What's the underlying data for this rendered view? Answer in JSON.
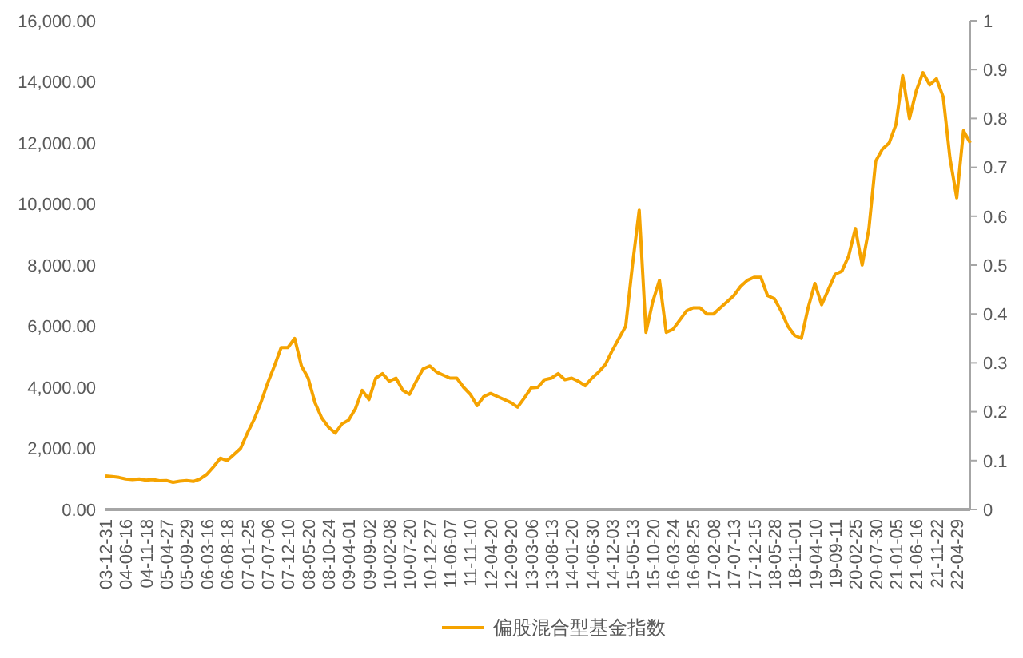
{
  "chart_data": {
    "type": "line",
    "categories": [
      "03-12-31",
      null,
      null,
      "04-06-16",
      null,
      null,
      "04-11-18",
      null,
      null,
      "05-04-27",
      null,
      null,
      "05-09-29",
      null,
      null,
      "06-03-16",
      null,
      null,
      "06-08-18",
      null,
      null,
      "07-01-25",
      null,
      null,
      "07-07-06",
      null,
      null,
      "07-12-10",
      null,
      null,
      "08-05-20",
      null,
      null,
      "08-10-24",
      null,
      null,
      "09-04-01",
      null,
      null,
      "09-09-02",
      null,
      null,
      "10-02-08",
      null,
      null,
      "10-07-20",
      null,
      null,
      "10-12-27",
      null,
      null,
      "11-06-07",
      null,
      null,
      "11-11-10",
      null,
      null,
      "12-04-20",
      null,
      null,
      "12-09-20",
      null,
      null,
      "13-03-06",
      null,
      null,
      "13-08-13",
      null,
      null,
      "14-01-20",
      null,
      null,
      "14-06-30",
      null,
      null,
      "14-12-03",
      null,
      null,
      "15-05-13",
      null,
      null,
      "15-10-20",
      null,
      null,
      "16-03-24",
      null,
      null,
      "16-08-25",
      null,
      null,
      "17-02-08",
      null,
      null,
      "17-07-13",
      null,
      null,
      "17-12-15",
      null,
      null,
      "18-05-28",
      null,
      null,
      "18-11-01",
      null,
      null,
      "19-04-10",
      null,
      null,
      "19-09-11",
      null,
      null,
      "20-02-25",
      null,
      null,
      "20-07-30",
      null,
      null,
      "21-01-05",
      null,
      null,
      "21-06-16",
      null,
      null,
      "21-11-22",
      null,
      null,
      "22-04-29",
      null,
      null
    ],
    "series": [
      {
        "name": "偏股混合型基金指数",
        "color": "#f5a300",
        "values": [
          1100,
          1080,
          1050,
          1000,
          980,
          1000,
          960,
          980,
          940,
          950,
          890,
          930,
          950,
          920,
          1000,
          1150,
          1400,
          1680,
          1600,
          1800,
          2000,
          2500,
          2950,
          3500,
          4140,
          4700,
          5300,
          5300,
          5600,
          4700,
          4300,
          3500,
          3000,
          2700,
          2500,
          2800,
          2930,
          3300,
          3900,
          3600,
          4300,
          4450,
          4200,
          4300,
          3900,
          3770,
          4200,
          4600,
          4700,
          4500,
          4400,
          4300,
          4300,
          4000,
          3770,
          3400,
          3700,
          3800,
          3700,
          3600,
          3500,
          3350,
          3650,
          3980,
          4000,
          4250,
          4300,
          4450,
          4250,
          4300,
          4200,
          4050,
          4300,
          4500,
          4750,
          5200,
          5600,
          6000,
          8000,
          9800,
          5800,
          6800,
          7500,
          5800,
          5900,
          6200,
          6500,
          6600,
          6600,
          6400,
          6400,
          6600,
          6800,
          7000,
          7300,
          7500,
          7600,
          7600,
          7000,
          6900,
          6500,
          6000,
          5700,
          5600,
          6600,
          7400,
          6700,
          7200,
          7700,
          7800,
          8300,
          9200,
          8000,
          9200,
          11400,
          11800,
          12000,
          12600,
          14200,
          12800,
          13700,
          14300,
          13900,
          14100,
          13500,
          11500,
          10200,
          12400,
          12000
        ]
      }
    ],
    "ylim": [
      0,
      16000
    ],
    "yticks": [
      {
        "value": 0,
        "label": "0.00"
      },
      {
        "value": 2000,
        "label": "2,000.00"
      },
      {
        "value": 4000,
        "label": "4,000.00"
      },
      {
        "value": 6000,
        "label": "6,000.00"
      },
      {
        "value": 8000,
        "label": "8,000.00"
      },
      {
        "value": 10000,
        "label": "10,000.00"
      },
      {
        "value": 12000,
        "label": "12,000.00"
      },
      {
        "value": 14000,
        "label": "14,000.00"
      },
      {
        "value": 16000,
        "label": "16,000.00"
      }
    ],
    "y2lim": [
      0,
      1
    ],
    "y2ticks": [
      0,
      0.1,
      0.2,
      0.3,
      0.4,
      0.5,
      0.6,
      0.7,
      0.8,
      0.9,
      1
    ],
    "legend": "bottom",
    "grid": false,
    "marker": "none",
    "line_style": "solid"
  }
}
